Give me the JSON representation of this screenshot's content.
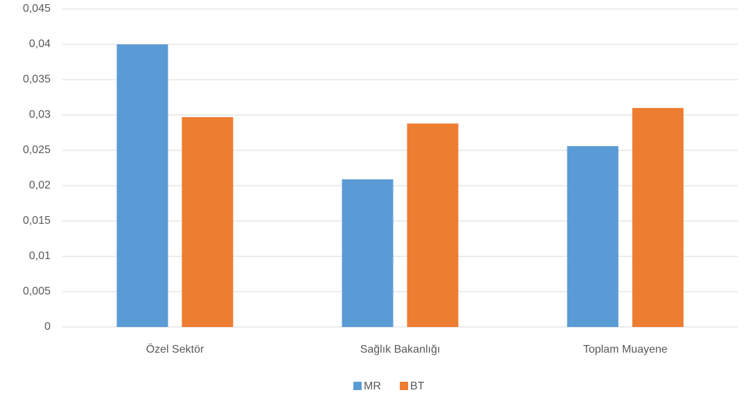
{
  "chart_data": {
    "type": "bar",
    "categories": [
      "Özel Sektör",
      "Sağlık Bakanlığı",
      "Toplam Muayene"
    ],
    "series": [
      {
        "name": "MR",
        "color": "#5b9bd5",
        "values": [
          0.04,
          0.0209,
          0.0256
        ]
      },
      {
        "name": "BT",
        "color": "#ed7d31",
        "values": [
          0.0297,
          0.0288,
          0.031
        ]
      }
    ],
    "ylim": [
      0,
      0.045
    ],
    "yticks": [
      0,
      {
        "value": 0.005,
        "label": "0,005"
      },
      {
        "value": 0.01,
        "label": "0,01"
      },
      {
        "value": 0.015,
        "label": "0,015"
      },
      {
        "value": 0.02,
        "label": "0,02"
      },
      {
        "value": 0.025,
        "label": "0,025"
      },
      {
        "value": 0.03,
        "label": "0,03"
      },
      {
        "value": 0.035,
        "label": "0,035"
      },
      {
        "value": 0.04,
        "label": "0,04"
      },
      {
        "value": 0.045,
        "label": "0,045"
      }
    ],
    "grid": true,
    "legend": "bottom"
  }
}
